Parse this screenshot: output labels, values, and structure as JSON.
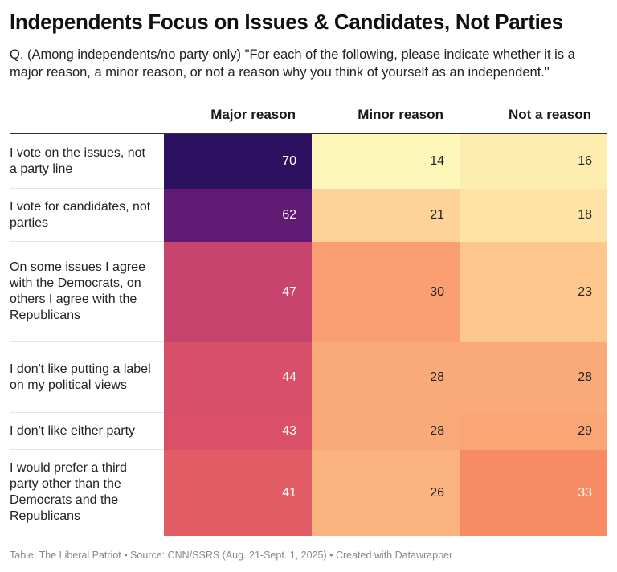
{
  "title": "Independents Focus on Issues & Candidates, Not Parties",
  "subtitle": "Q. (Among independents/no party only) \"For each of the following, please indicate whether it is a major reason, a minor reason, or not a reason why you think of yourself as an independent.\"",
  "footer": "Table: The Liberal Patriot • Source: CNN/SSRS (Aug. 21-Sept. 1, 2025) • Created with Datawrapper",
  "chart_data": {
    "type": "heatmap",
    "title": "Independents Focus on Issues & Candidates, Not Parties",
    "columns": [
      "Major reason",
      "Minor reason",
      "Not a reason"
    ],
    "rows": [
      {
        "label": "I vote on the issues, not a party line",
        "values": [
          70,
          14,
          16
        ],
        "colors": [
          "#2c1160",
          "#fdf8b9",
          "#fdeeb0"
        ],
        "text_colors": [
          "#ffffff",
          "#222222",
          "#222222"
        ]
      },
      {
        "label": "I vote for candidates, not parties",
        "values": [
          62,
          21,
          18
        ],
        "colors": [
          "#611b74",
          "#fdd39a",
          "#fde4a6"
        ],
        "text_colors": [
          "#ffffff",
          "#222222",
          "#222222"
        ]
      },
      {
        "label": "On some issues I agree with the Democrats, on others I agree with the Republicans",
        "values": [
          47,
          30,
          23
        ],
        "colors": [
          "#c6446e",
          "#f99f71",
          "#fcc68c"
        ],
        "text_colors": [
          "#ffffff",
          "#222222",
          "#222222"
        ]
      },
      {
        "label": "I don't like putting a label on my political views",
        "values": [
          44,
          28,
          28
        ],
        "colors": [
          "#d84f6a",
          "#faaa78",
          "#faaa78"
        ],
        "text_colors": [
          "#ffffff",
          "#222222",
          "#222222"
        ]
      },
      {
        "label": "I don't like either party",
        "values": [
          43,
          28,
          29
        ],
        "colors": [
          "#da5067",
          "#faaa78",
          "#f9a574"
        ],
        "text_colors": [
          "#ffffff",
          "#222222",
          "#222222"
        ]
      },
      {
        "label": "I would prefer a third party other than the Democrats and the Republicans",
        "values": [
          41,
          26,
          33
        ],
        "colors": [
          "#e35d67",
          "#fbb480",
          "#f78b64"
        ],
        "text_colors": [
          "#ffffff",
          "#222222",
          "#ffffff"
        ]
      }
    ]
  }
}
